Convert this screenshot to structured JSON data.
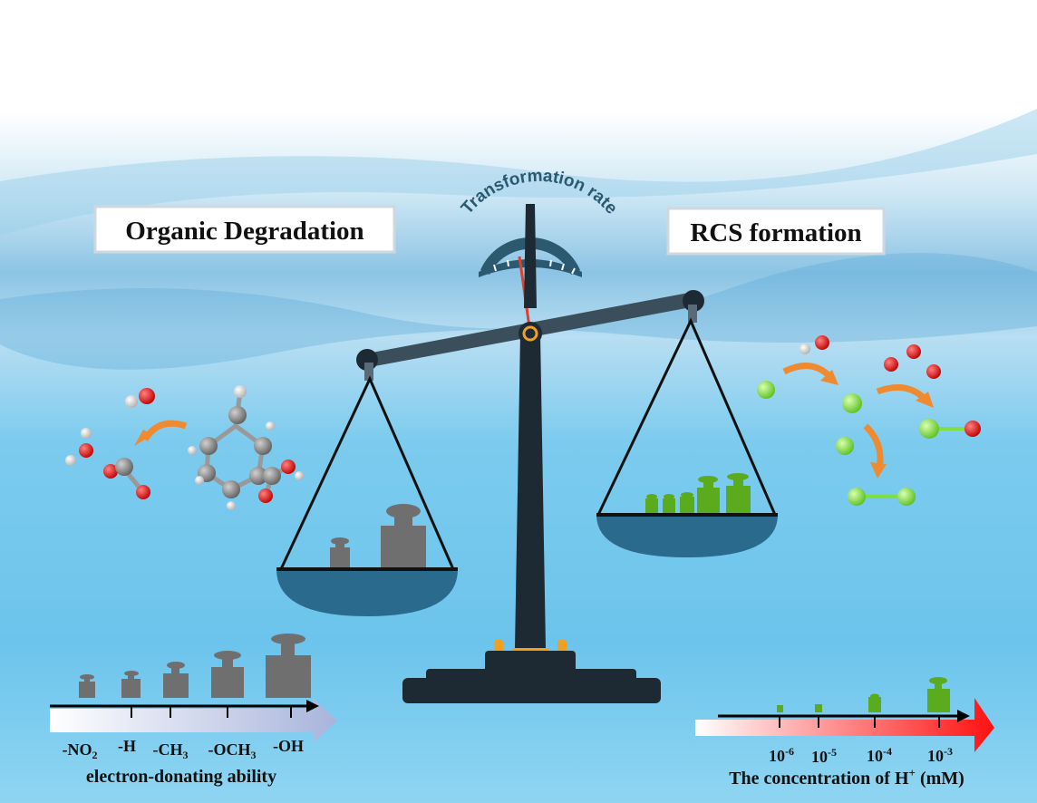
{
  "labels": {
    "left_title": "Organic Degradation",
    "right_title": "RCS formation",
    "gauge": "Transformation rate"
  },
  "left_axis": {
    "title": "electron-donating ability",
    "ticks": [
      {
        "base": "-NO",
        "sub": "2"
      },
      {
        "base": "-H",
        "sub": ""
      },
      {
        "base": "-CH",
        "sub": "3"
      },
      {
        "base": "-OCH",
        "sub": "3"
      },
      {
        "base": "-OH",
        "sub": ""
      }
    ]
  },
  "right_axis": {
    "title_base": "The concentration of H",
    "title_sup": "+",
    "title_unit": " (mM)",
    "ticks": [
      {
        "base": "10",
        "sup": "-6"
      },
      {
        "base": "10",
        "sup": "-5"
      },
      {
        "base": "10",
        "sup": "-4"
      },
      {
        "base": "10",
        "sup": "-3"
      }
    ]
  },
  "colors": {
    "water": "#6cc4ec",
    "scale_dark": "#1e2a33",
    "pan": "#2a6a8c",
    "weight_gray": "#6f6f6f",
    "weight_green": "#5aab1e",
    "oxygen": "#e01010",
    "chlorine": "#7ee040",
    "carbon": "#8a8a8a",
    "hydrogen": "#f2f2f2",
    "arrow_orange": "#f08a30",
    "needle": "#e04030"
  }
}
